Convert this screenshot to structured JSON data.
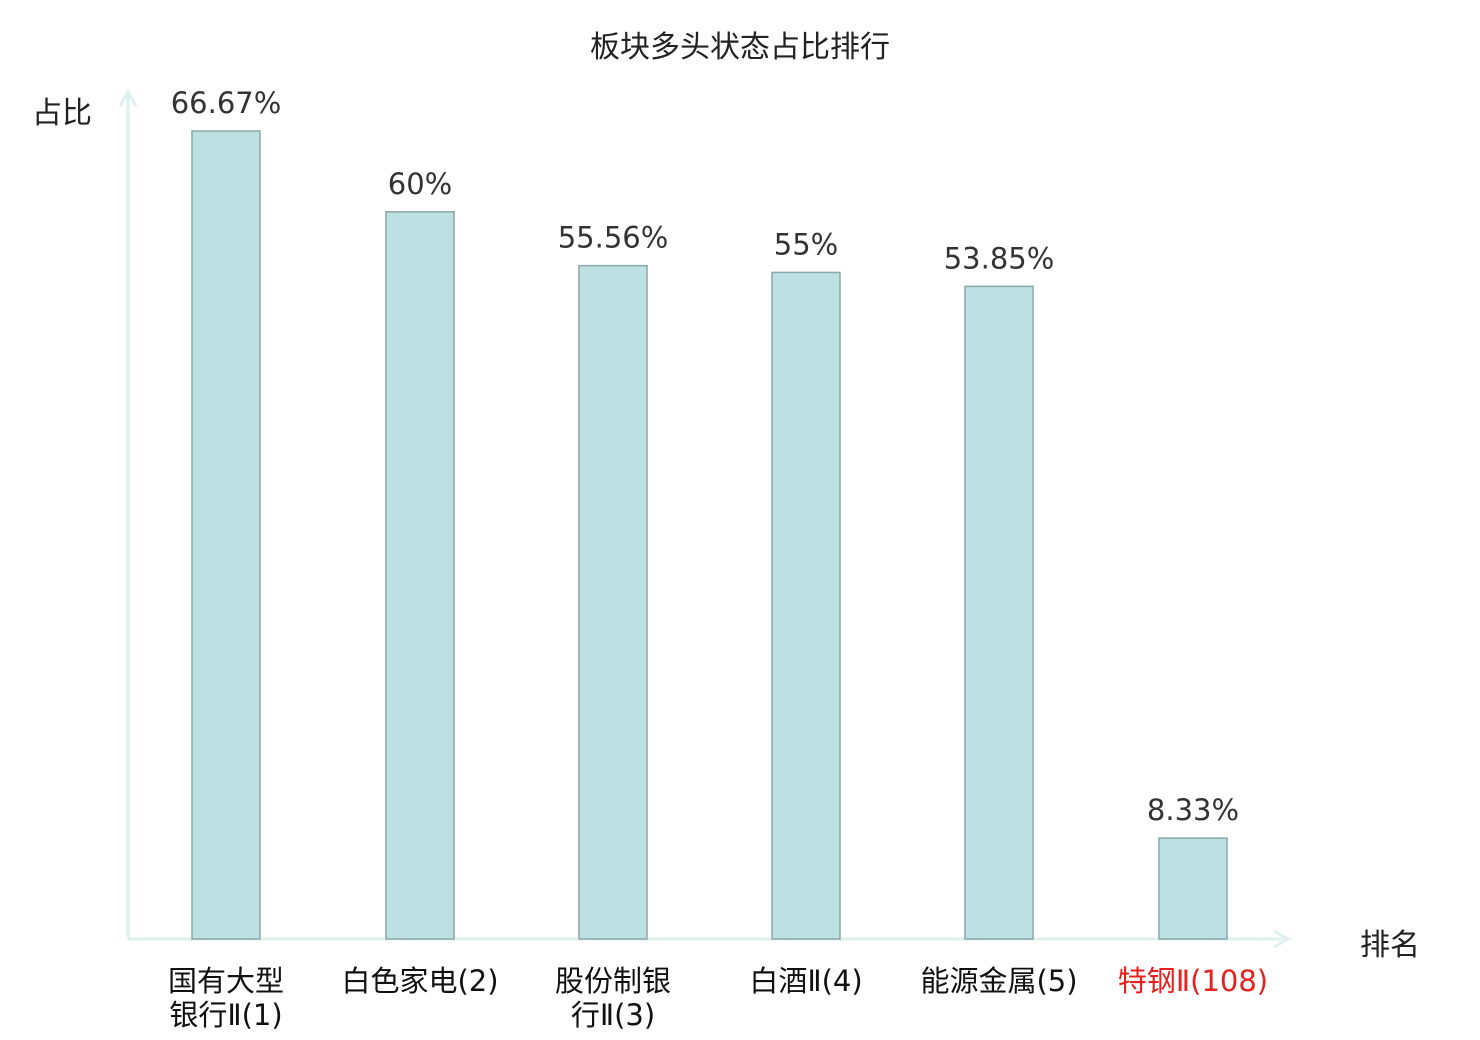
{
  "chart_data": {
    "type": "bar",
    "title": "板块多头状态占比排行",
    "ylabel": "占比",
    "xlabel": "排名",
    "ylim": [
      0,
      70
    ],
    "categories": [
      {
        "line1": "国有大型",
        "line2": "银行Ⅱ(1)",
        "highlight": false
      },
      {
        "line1": "白色家电(2)",
        "line2": "",
        "highlight": false
      },
      {
        "line1": "股份制银",
        "line2": "行Ⅱ(3)",
        "highlight": false
      },
      {
        "line1": "白酒Ⅱ(4)",
        "line2": "",
        "highlight": false
      },
      {
        "line1": "能源金属(5)",
        "line2": "",
        "highlight": false
      },
      {
        "line1": "特钢Ⅱ(108)",
        "line2": "",
        "highlight": true
      }
    ],
    "values": [
      66.67,
      60,
      55.56,
      55,
      53.85,
      8.33
    ],
    "value_labels": [
      "66.67%",
      "60%",
      "55.56%",
      "55%",
      "53.85%",
      "8.33%"
    ],
    "colors": {
      "bar_fill": "#bde0e3",
      "bar_stroke": "#8aa7a9",
      "axis": "#dff1ef",
      "label_text": "#333333",
      "highlight_text": "#e8201e"
    }
  }
}
